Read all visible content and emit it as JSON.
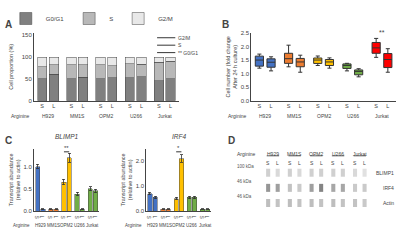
{
  "chart_data": [
    {
      "type": "bar",
      "title": "A",
      "stacked": true,
      "ylabel": "Cell proportion (%)",
      "xlabel": "Arginine",
      "categories": [
        "S",
        "L",
        "S",
        "L",
        "S",
        "L",
        "S",
        "L",
        "S",
        "L"
      ],
      "groups": [
        "H929",
        "MM1S",
        "OPM2",
        "U266",
        "Jurkat"
      ],
      "series": [
        {
          "name": "G0/G1",
          "color": "#808080",
          "values": [
            50,
            60,
            50,
            54,
            50,
            52,
            53,
            55,
            46,
            50
          ]
        },
        {
          "name": "S",
          "color": "#b8b8b8",
          "values": [
            28,
            22,
            32,
            28,
            32,
            28,
            32,
            28,
            42,
            40
          ]
        },
        {
          "name": "G2/M",
          "color": "#e8e8e8",
          "values": [
            22,
            18,
            18,
            18,
            18,
            20,
            15,
            17,
            12,
            10
          ]
        }
      ],
      "ylim": [
        0,
        155
      ],
      "yticks": [
        0,
        50,
        100,
        150
      ],
      "legend": "upper right",
      "annotations": [
        {
          "text": "G2/M",
          "group": "Jurkat"
        },
        {
          "text": "S",
          "group": "Jurkat"
        },
        {
          "text": "** G0/G1",
          "group": "Jurkat"
        }
      ]
    },
    {
      "type": "box",
      "title": "B",
      "ylabel": "Cell number (fold change\nAfter 24 h culture)",
      "xlabel": "Arginine",
      "categories": [
        "S",
        "L",
        "S",
        "L",
        "S",
        "L",
        "S",
        "L",
        "S",
        "L"
      ],
      "groups": [
        "H929",
        "MM1S",
        "OPM2",
        "U266",
        "Jurkat"
      ],
      "values": [
        [
          1.2,
          1.3,
          1.5,
          1.62,
          1.72
        ],
        [
          1.1,
          1.28,
          1.42,
          1.52,
          1.62
        ],
        [
          1.25,
          1.42,
          1.55,
          1.65,
          2.05
        ],
        [
          1.05,
          1.32,
          1.43,
          1.52,
          1.68
        ],
        [
          1.3,
          1.4,
          1.5,
          1.55,
          1.65
        ],
        [
          1.2,
          1.33,
          1.43,
          1.5,
          1.58
        ],
        [
          1.1,
          1.22,
          1.3,
          1.35,
          1.38
        ],
        [
          0.88,
          0.98,
          1.08,
          1.12,
          1.18
        ],
        [
          1.6,
          1.8,
          1.95,
          2.1,
          2.3
        ],
        [
          1.05,
          1.28,
          1.52,
          1.68,
          1.92
        ]
      ],
      "colors": [
        "#4472c4",
        "#4472c4",
        "#ed7d31",
        "#ed7d31",
        "#ffc000",
        "#ffc000",
        "#70ad47",
        "#70ad47",
        "#ff0000",
        "#ff0000"
      ],
      "ylim": [
        0.0,
        2.5
      ],
      "yticks": [
        {
          "value": 0.0,
          "label": "0.0"
        },
        0.5,
        {
          "value": 1.0,
          "label": "1.0"
        },
        1.5,
        {
          "value": 2.0,
          "label": "2.0"
        },
        2.5
      ],
      "annotations": [
        {
          "text": "**",
          "group": "Jurkat"
        }
      ]
    },
    {
      "type": "bar",
      "title": "BLIMP1",
      "ylabel": "Transcript abundance\n(relative to actin)",
      "xlabel": "Arginine",
      "categories": [
        "S",
        "L",
        "S",
        "L",
        "S",
        "L",
        "S",
        "L",
        "S",
        "L"
      ],
      "groups": [
        "H929",
        "MM1S",
        "OPM2",
        "U266",
        "Jurkat"
      ],
      "values": [
        1.0,
        0.04,
        0.04,
        0.04,
        0.65,
        1.2,
        0.38,
        0.04,
        0.5,
        0.45
      ],
      "errors": [
        0.05,
        0.01,
        0.01,
        0.01,
        0.06,
        0.1,
        0.04,
        0.01,
        0.04,
        0.04
      ],
      "colors": [
        "#4472c4",
        "#4472c4",
        "#ed7d31",
        "#ed7d31",
        "#ffc000",
        "#ffc000",
        "#70ad47",
        "#70ad47",
        "#70ad47",
        "#70ad47"
      ],
      "ylim": [
        0,
        1.4
      ],
      "yticks": [
        {
          "value": 0,
          "label": "0.0"
        },
        0.5,
        {
          "value": 1.0,
          "label": "1.0"
        }
      ],
      "annotations": [
        {
          "text": "C"
        },
        {
          "text": "**",
          "group": "OPM2"
        }
      ]
    },
    {
      "type": "bar",
      "title": "IRF4",
      "ylabel": "Transcript abundance\n(relative to actin)",
      "xlabel": "Arginine",
      "categories": [
        "S",
        "L",
        "S",
        "L",
        "S",
        "L",
        "S",
        "L",
        "S",
        "L"
      ],
      "groups": [
        "H929",
        "MM1S",
        "OPM2",
        "U266",
        "Jurkat"
      ],
      "values": [
        0.7,
        0.55,
        0.08,
        0.08,
        0.5,
        2.1,
        0.55,
        0.55,
        0.08,
        0.08
      ],
      "errors": [
        0.05,
        0.05,
        0.01,
        0.01,
        0.05,
        0.15,
        0.05,
        0.05,
        0.01,
        0.01
      ],
      "colors": [
        "#4472c4",
        "#4472c4",
        "#ed7d31",
        "#ed7d31",
        "#ffc000",
        "#ffc000",
        "#70ad47",
        "#70ad47",
        "#70ad47",
        "#70ad47"
      ],
      "ylim": [
        0,
        2.5
      ],
      "yticks": [
        {
          "value": 0,
          "label": "0.0"
        },
        {
          "value": 1.0,
          "label": "1.0"
        },
        {
          "value": 2.0,
          "label": "2.0"
        }
      ],
      "annotations": [
        {
          "text": "*",
          "group": "OPM2"
        }
      ]
    },
    {
      "type": "blot",
      "title": "D",
      "xlabel": "Arginine",
      "categories": [
        "S",
        "L",
        "S",
        "L",
        "S",
        "L",
        "S",
        "L",
        "S",
        "L"
      ],
      "groups": [
        "H929",
        "MM1S",
        "OPM2",
        "U266",
        "Jurkat"
      ],
      "rows": [
        "BLIMP1",
        "IRF4",
        "Actin"
      ],
      "row_labels": [
        "100 kDa",
        "46 kDa",
        "46 kDa"
      ]
    }
  ]
}
